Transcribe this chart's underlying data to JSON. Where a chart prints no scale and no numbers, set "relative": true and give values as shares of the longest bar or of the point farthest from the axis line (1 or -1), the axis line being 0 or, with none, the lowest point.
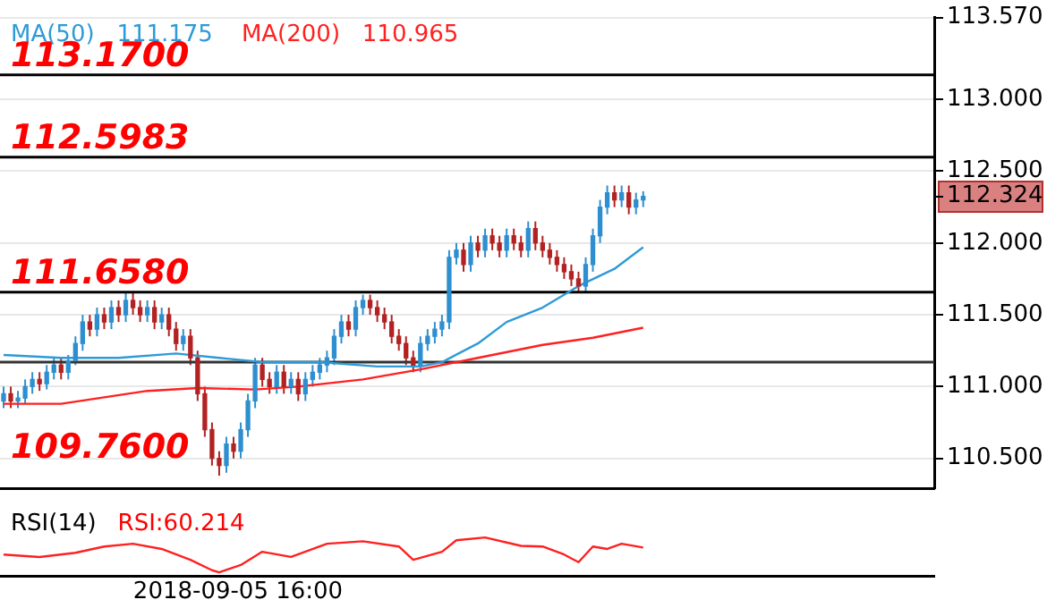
{
  "chart_data": [
    {
      "type": "candlestick",
      "categories": [
        null,
        null,
        null,
        null,
        null,
        null,
        null,
        null,
        null,
        null,
        null,
        null,
        null,
        null,
        null,
        null,
        null,
        null,
        null,
        null,
        null,
        null,
        null,
        null,
        null,
        null,
        null,
        null,
        null,
        null,
        null,
        null,
        null,
        null,
        null,
        null,
        null,
        null,
        null,
        null,
        null,
        null,
        null,
        null,
        null,
        null,
        null,
        null,
        null,
        null,
        null,
        null,
        null,
        null,
        null,
        null,
        null,
        null,
        null,
        null,
        null,
        null,
        null,
        null,
        null,
        null,
        null,
        null,
        null,
        null,
        null,
        null,
        null,
        null,
        null,
        null,
        null,
        null,
        null,
        null,
        null,
        null,
        null,
        null,
        null,
        null,
        null,
        null,
        null,
        null,
        null,
        null,
        null,
        null,
        null,
        null,
        null,
        null,
        null,
        null,
        null,
        null,
        null,
        null,
        null,
        null,
        null,
        null,
        null,
        null,
        null,
        null,
        null,
        null,
        null,
        null,
        null,
        null,
        null,
        null,
        null,
        null,
        null,
        null,
        null,
        null,
        null,
        null,
        null,
        null
      ],
      "ohlc": [
        [
          110.9,
          111.0,
          110.85,
          110.95
        ],
        [
          110.95,
          111.0,
          110.85,
          110.9
        ],
        [
          110.9,
          110.97,
          110.85,
          110.92
        ],
        [
          110.92,
          111.05,
          110.88,
          111.0
        ],
        [
          111.0,
          111.1,
          110.95,
          111.05
        ],
        [
          111.05,
          111.1,
          110.97,
          111.02
        ],
        [
          111.02,
          111.15,
          110.98,
          111.1
        ],
        [
          111.1,
          111.2,
          111.05,
          111.15
        ],
        [
          111.15,
          111.2,
          111.05,
          111.1
        ],
        [
          111.1,
          111.22,
          111.05,
          111.18
        ],
        [
          111.18,
          111.35,
          111.15,
          111.3
        ],
        [
          111.3,
          111.5,
          111.25,
          111.45
        ],
        [
          111.45,
          111.5,
          111.35,
          111.4
        ],
        [
          111.4,
          111.55,
          111.35,
          111.5
        ],
        [
          111.5,
          111.55,
          111.4,
          111.45
        ],
        [
          111.45,
          111.6,
          111.4,
          111.55
        ],
        [
          111.55,
          111.6,
          111.45,
          111.5
        ],
        [
          111.5,
          111.66,
          111.45,
          111.6
        ],
        [
          111.6,
          111.65,
          111.5,
          111.55
        ],
        [
          111.55,
          111.6,
          111.45,
          111.5
        ],
        [
          111.5,
          111.6,
          111.45,
          111.55
        ],
        [
          111.55,
          111.6,
          111.4,
          111.45
        ],
        [
          111.45,
          111.55,
          111.4,
          111.5
        ],
        [
          111.5,
          111.55,
          111.35,
          111.4
        ],
        [
          111.4,
          111.45,
          111.25,
          111.3
        ],
        [
          111.3,
          111.4,
          111.25,
          111.35
        ],
        [
          111.35,
          111.4,
          111.15,
          111.2
        ],
        [
          111.2,
          111.25,
          110.9,
          110.95
        ],
        [
          110.95,
          111.0,
          110.65,
          110.7
        ],
        [
          110.7,
          110.75,
          110.45,
          110.5
        ],
        [
          110.5,
          110.55,
          110.38,
          110.45
        ],
        [
          110.45,
          110.65,
          110.4,
          110.6
        ],
        [
          110.6,
          110.65,
          110.5,
          110.55
        ],
        [
          110.55,
          110.75,
          110.5,
          110.7
        ],
        [
          110.7,
          110.95,
          110.65,
          110.9
        ],
        [
          110.9,
          111.2,
          110.85,
          111.15
        ],
        [
          111.15,
          111.2,
          111.0,
          111.05
        ],
        [
          111.05,
          111.1,
          110.95,
          111.0
        ],
        [
          111.0,
          111.15,
          110.95,
          111.1
        ],
        [
          111.1,
          111.15,
          110.95,
          111.0
        ],
        [
          111.0,
          111.1,
          110.95,
          111.05
        ],
        [
          111.05,
          111.1,
          110.9,
          110.95
        ],
        [
          110.95,
          111.1,
          110.9,
          111.05
        ],
        [
          111.05,
          111.15,
          111.0,
          111.1
        ],
        [
          111.1,
          111.2,
          111.05,
          111.15
        ],
        [
          111.15,
          111.25,
          111.1,
          111.2
        ],
        [
          111.2,
          111.4,
          111.15,
          111.35
        ],
        [
          111.35,
          111.5,
          111.3,
          111.45
        ],
        [
          111.45,
          111.5,
          111.35,
          111.4
        ],
        [
          111.4,
          111.6,
          111.35,
          111.55
        ],
        [
          111.55,
          111.64,
          111.5,
          111.6
        ],
        [
          111.6,
          111.64,
          111.5,
          111.55
        ],
        [
          111.55,
          111.6,
          111.45,
          111.5
        ],
        [
          111.5,
          111.55,
          111.4,
          111.45
        ],
        [
          111.45,
          111.5,
          111.3,
          111.35
        ],
        [
          111.35,
          111.4,
          111.25,
          111.3
        ],
        [
          111.3,
          111.35,
          111.15,
          111.2
        ],
        [
          111.2,
          111.25,
          111.1,
          111.15
        ],
        [
          111.15,
          111.35,
          111.1,
          111.3
        ],
        [
          111.3,
          111.4,
          111.25,
          111.35
        ],
        [
          111.35,
          111.45,
          111.3,
          111.4
        ],
        [
          111.4,
          111.5,
          111.35,
          111.45
        ],
        [
          111.45,
          111.95,
          111.4,
          111.9
        ],
        [
          111.9,
          112.0,
          111.85,
          111.95
        ],
        [
          111.95,
          112.0,
          111.8,
          111.85
        ],
        [
          111.85,
          112.05,
          111.8,
          112.0
        ],
        [
          112.0,
          112.05,
          111.9,
          111.95
        ],
        [
          111.95,
          112.1,
          111.9,
          112.05
        ],
        [
          112.05,
          112.1,
          111.95,
          112.0
        ],
        [
          112.0,
          112.05,
          111.9,
          111.95
        ],
        [
          111.95,
          112.1,
          111.9,
          112.05
        ],
        [
          112.05,
          112.1,
          111.95,
          112.0
        ],
        [
          112.0,
          112.05,
          111.9,
          111.95
        ],
        [
          111.95,
          112.15,
          111.9,
          112.1
        ],
        [
          112.1,
          112.15,
          111.95,
          112.0
        ],
        [
          112.0,
          112.05,
          111.9,
          111.95
        ],
        [
          111.95,
          112.0,
          111.85,
          111.9
        ],
        [
          111.9,
          111.95,
          111.8,
          111.85
        ],
        [
          111.85,
          111.9,
          111.75,
          111.8
        ],
        [
          111.8,
          111.85,
          111.7,
          111.75
        ],
        [
          111.75,
          111.8,
          111.66,
          111.7
        ],
        [
          111.7,
          111.9,
          111.66,
          111.85
        ],
        [
          111.85,
          112.1,
          111.8,
          112.05
        ],
        [
          112.05,
          112.3,
          112.0,
          112.25
        ],
        [
          112.25,
          112.4,
          112.2,
          112.35
        ],
        [
          112.35,
          112.4,
          112.25,
          112.3
        ],
        [
          112.3,
          112.4,
          112.25,
          112.35
        ],
        [
          112.35,
          112.4,
          112.2,
          112.25
        ],
        [
          112.25,
          112.35,
          112.2,
          112.3
        ],
        [
          112.3,
          112.36,
          112.25,
          112.324
        ],
        null,
        null,
        null,
        null,
        null,
        null,
        null,
        null,
        null,
        null,
        null,
        null,
        null,
        null,
        null,
        null,
        null,
        null,
        null,
        null,
        null,
        null,
        null,
        null,
        null,
        null,
        null,
        null,
        null,
        null,
        null,
        null,
        null,
        null,
        null,
        null,
        null,
        null,
        null,
        null
      ],
      "colors": [
        "#2e8fd0",
        "#b22222",
        "#2e8fd0",
        "#2e8fd0",
        "#2e8fd0",
        "#b22222",
        "#2e8fd0",
        "#2e8fd0",
        "#b22222",
        "#2e8fd0",
        "#2e8fd0",
        "#2e8fd0",
        "#b22222",
        "#2e8fd0",
        "#b22222",
        "#2e8fd0",
        "#b22222",
        "#2e8fd0",
        "#b22222",
        "#b22222",
        "#2e8fd0",
        "#b22222",
        "#2e8fd0",
        "#b22222",
        "#b22222",
        "#2e8fd0",
        "#b22222",
        "#b22222",
        "#b22222",
        "#b22222",
        "#b22222",
        "#2e8fd0",
        "#b22222",
        "#2e8fd0",
        "#2e8fd0",
        "#2e8fd0",
        "#b22222",
        "#b22222",
        "#2e8fd0",
        "#b22222",
        "#2e8fd0",
        "#b22222",
        "#2e8fd0",
        "#2e8fd0",
        "#2e8fd0",
        "#2e8fd0",
        "#2e8fd0",
        "#2e8fd0",
        "#b22222",
        "#2e8fd0",
        "#2e8fd0",
        "#b22222",
        "#b22222",
        "#b22222",
        "#b22222",
        "#b22222",
        "#b22222",
        "#b22222",
        "#2e8fd0",
        "#2e8fd0",
        "#2e8fd0",
        "#2e8fd0",
        "#2e8fd0",
        "#2e8fd0",
        "#b22222",
        "#2e8fd0",
        "#b22222",
        "#2e8fd0",
        "#b22222",
        "#b22222",
        "#2e8fd0",
        "#b22222",
        "#b22222",
        "#2e8fd0",
        "#b22222",
        "#b22222",
        "#b22222",
        "#b22222",
        "#b22222",
        "#b22222",
        "#b22222",
        "#2e8fd0",
        "#2e8fd0",
        "#2e8fd0",
        "#2e8fd0",
        "#b22222",
        "#2e8fd0",
        "#b22222",
        "#2e8fd0",
        "#2e8fd0",
        null,
        null,
        null,
        null,
        null,
        null,
        null,
        null,
        null,
        null,
        null,
        null,
        null,
        null,
        null,
        null,
        null,
        null,
        null,
        null,
        null,
        null,
        null,
        null,
        null,
        null,
        null,
        null,
        null,
        null,
        null,
        null,
        null,
        null,
        null,
        null,
        null,
        null,
        null,
        null
      ],
      "series": [
        {
          "type": "line",
          "name": "MA(50)   111.175",
          "color": "#2e9ad6",
          "values": [
            111.22,
            null,
            null,
            null,
            null,
            null,
            null,
            null,
            111.2,
            null,
            null,
            null,
            null,
            null,
            null,
            null,
            111.2,
            null,
            null,
            null,
            null,
            null,
            null,
            null,
            111.23,
            null,
            null,
            null,
            null,
            null,
            111.2,
            null,
            null,
            null,
            null,
            null,
            111.17,
            null,
            null,
            null,
            null,
            null,
            null,
            null,
            111.17,
            null,
            null,
            null,
            null,
            null,
            null,
            null,
            111.14,
            null,
            null,
            null,
            null,
            null,
            111.14,
            null,
            null,
            111.17,
            null,
            null,
            null,
            null,
            111.3,
            null,
            null,
            null,
            111.45,
            null,
            null,
            null,
            null,
            111.55,
            null,
            null,
            null,
            null,
            111.7,
            null,
            null,
            null,
            null,
            111.82,
            null,
            null,
            null,
            111.97,
            null,
            null,
            null,
            null,
            null,
            null,
            null,
            null,
            null,
            null,
            null,
            null,
            null,
            null,
            null,
            null,
            null,
            null,
            null,
            null,
            null,
            null,
            null,
            null,
            null,
            null,
            null,
            null,
            null,
            null,
            null,
            null,
            null,
            null,
            null,
            null,
            null,
            null,
            null,
            null
          ]
        },
        {
          "type": "line",
          "name": "MA(200)   110.965",
          "color": "#ff2020",
          "values": [
            110.88,
            null,
            null,
            null,
            null,
            null,
            null,
            null,
            110.88,
            null,
            null,
            null,
            null,
            null,
            null,
            null,
            null,
            null,
            null,
            null,
            110.97,
            null,
            null,
            null,
            null,
            null,
            null,
            110.99,
            null,
            null,
            null,
            null,
            null,
            null,
            null,
            110.98,
            null,
            null,
            null,
            null,
            null,
            111.0,
            null,
            null,
            null,
            null,
            null,
            null,
            null,
            null,
            111.05,
            null,
            null,
            null,
            null,
            null,
            null,
            null,
            111.12,
            null,
            null,
            null,
            null,
            null,
            null,
            null,
            111.2,
            null,
            null,
            null,
            null,
            null,
            null,
            null,
            null,
            111.29,
            null,
            null,
            null,
            null,
            null,
            null,
            111.34,
            null,
            null,
            null,
            null,
            null,
            null,
            111.41,
            null,
            null,
            null,
            null,
            null,
            null,
            null,
            null,
            null,
            null,
            null,
            null,
            null,
            null,
            null,
            null,
            null,
            null,
            null,
            null,
            null,
            null,
            null,
            null,
            null,
            null,
            null,
            null,
            null,
            null,
            null,
            null,
            null,
            null,
            null,
            null,
            null,
            null,
            null,
            null
          ]
        }
      ],
      "ylim": [
        110.29,
        113.57
      ],
      "yticks": [
        {
          "value": 110.5,
          "label": "110.500"
        },
        {
          "value": 111,
          "label": "111.000"
        },
        {
          "value": 111.5,
          "label": "111.500"
        },
        {
          "value": 112,
          "label": "112.000"
        },
        {
          "value": 112.5,
          "label": "112.500"
        },
        {
          "value": 113,
          "label": "113.000"
        },
        {
          "value": 113.57,
          "label": "113.570"
        },
        {
          "value": 112.324,
          "label": "112.324"
        }
      ],
      "ref_lines": [
        {
          "axis": "y",
          "value": 113.17,
          "label": "113.1700",
          "color": "#000000"
        },
        {
          "axis": "y",
          "value": 112.5983,
          "label": "112.5983",
          "color": "#000000"
        },
        {
          "axis": "y",
          "value": 111.658,
          "label": "111.6580",
          "color": "#000000"
        },
        {
          "axis": "y",
          "value": 111.17,
          "color": "#333333"
        }
      ],
      "annotations": [
        "109.7600"
      ],
      "grid": "y",
      "legend": "top left",
      "marker": "none",
      "tick_labels": "y"
    },
    {
      "type": "line",
      "relative": true,
      "title": "RSI(14)",
      "annotations": [
        "RSI:60.214",
        "2018-09-05 16:00"
      ],
      "tick_labels": false,
      "marker": "none",
      "categories": [
        null,
        null,
        null,
        null,
        null,
        null,
        null,
        null,
        null,
        null,
        null,
        null,
        null,
        null,
        null,
        null,
        null,
        null,
        null,
        null,
        null,
        null,
        null,
        null,
        null,
        null,
        null,
        null,
        null,
        null,
        null,
        null,
        null,
        null,
        null,
        null,
        null,
        null,
        null,
        null,
        null,
        null,
        null,
        null,
        null,
        null,
        null,
        null,
        null,
        null,
        null,
        null,
        null,
        null,
        null,
        null,
        null,
        null,
        null,
        null,
        null,
        null,
        null,
        null,
        null,
        null,
        null,
        null,
        null,
        null,
        null,
        null,
        null,
        null,
        null,
        null,
        null,
        null,
        null,
        null,
        null,
        null,
        null,
        null,
        null,
        null,
        null,
        null,
        null,
        null,
        null,
        null,
        null,
        null,
        null,
        null,
        null,
        null,
        null,
        null,
        null,
        null,
        null,
        null,
        null,
        null,
        null,
        null,
        null,
        null,
        null,
        null,
        null,
        null,
        null,
        null,
        null,
        null,
        null,
        null,
        null,
        null,
        null,
        null,
        null,
        null,
        null,
        null,
        null,
        null
      ],
      "series": [
        {
          "color": "#ff2020",
          "values": [
            0.51,
            null,
            null,
            null,
            null,
            0.44,
            null,
            null,
            null,
            null,
            0.56,
            null,
            null,
            null,
            0.74,
            null,
            null,
            null,
            0.82,
            null,
            null,
            null,
            0.67,
            null,
            null,
            null,
            0.36,
            null,
            null,
            0.06,
            0,
            null,
            null,
            0.21,
            null,
            null,
            0.59,
            null,
            null,
            null,
            0.44,
            null,
            null,
            null,
            null,
            0.82,
            null,
            null,
            null,
            null,
            0.89,
            null,
            null,
            null,
            null,
            0.74,
            null,
            0.36,
            null,
            null,
            null,
            0.59,
            null,
            0.92,
            null,
            null,
            null,
            1,
            null,
            null,
            null,
            null,
            0.76,
            null,
            null,
            0.74,
            null,
            null,
            0.51,
            null,
            0.29,
            null,
            0.74,
            null,
            0.67,
            null,
            0.82,
            null,
            null,
            0.71,
            null,
            null,
            null,
            null,
            null,
            null,
            null,
            null,
            null,
            null,
            null,
            null,
            null,
            null,
            null,
            null,
            null,
            null,
            null,
            null,
            null,
            null,
            null,
            null,
            null,
            null,
            null,
            null,
            null,
            null,
            null,
            null,
            null,
            null,
            null,
            null,
            null,
            null,
            null,
            null
          ]
        }
      ]
    }
  ]
}
